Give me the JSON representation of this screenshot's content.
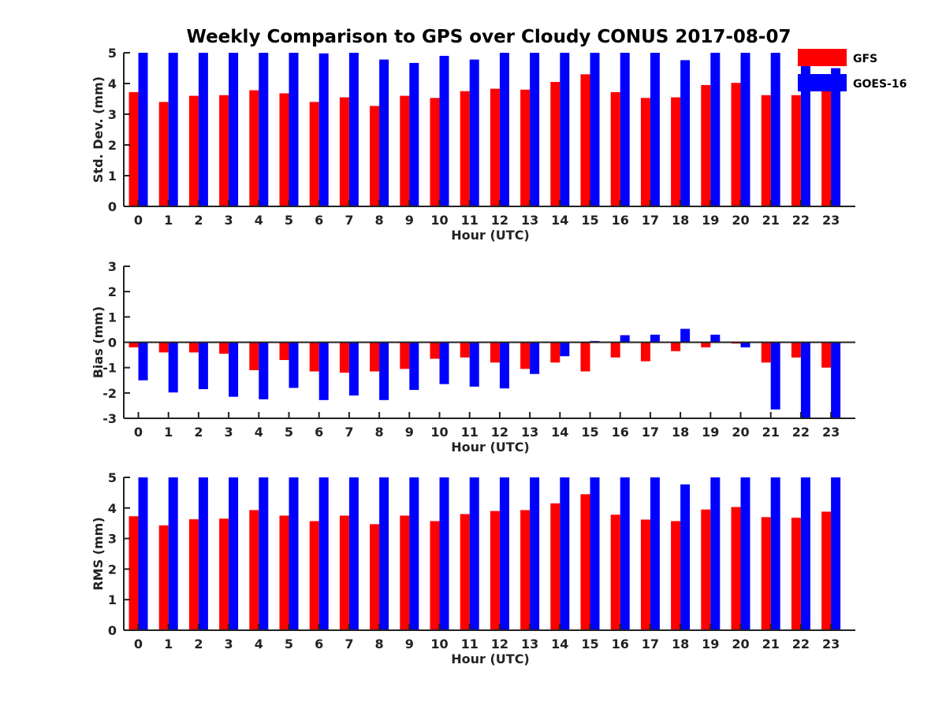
{
  "chart_data": {
    "title": "Weekly Comparison to GPS over Cloudy CONUS 2017-08-07",
    "type": "bar",
    "legend": {
      "placement": "top-right",
      "entries": [
        {
          "name": "GFS",
          "color": "#ff0000"
        },
        {
          "name": "GOES-16",
          "color": "#0000ff"
        }
      ]
    },
    "panels": [
      {
        "id": "stddev",
        "ylabel": "Std. Dev. (mm)",
        "xlabel": "Hour (UTC)",
        "ylim": [
          0,
          5
        ],
        "yticks": [
          "0",
          "1",
          "2",
          "3",
          "4",
          "5"
        ],
        "categories": [
          "0",
          "1",
          "2",
          "3",
          "4",
          "5",
          "6",
          "7",
          "8",
          "9",
          "10",
          "11",
          "12",
          "13",
          "14",
          "15",
          "16",
          "17",
          "18",
          "19",
          "20",
          "21",
          "22",
          "23"
        ],
        "zero_line": false,
        "series": [
          {
            "name": "GFS",
            "color": "#ff0000",
            "values": [
              3.72,
              3.4,
              3.6,
              3.62,
              3.78,
              3.68,
              3.4,
              3.55,
              3.27,
              3.6,
              3.53,
              3.75,
              3.83,
              3.8,
              4.05,
              4.3,
              3.72,
              3.53,
              3.55,
              3.95,
              4.02,
              3.62,
              3.62,
              3.75
            ]
          },
          {
            "name": "GOES-16",
            "color": "#0000ff",
            "values": [
              5.0,
              5.0,
              5.0,
              5.0,
              5.0,
              5.0,
              4.98,
              5.0,
              4.78,
              4.67,
              4.9,
              4.78,
              5.0,
              5.0,
              5.0,
              5.0,
              5.0,
              5.0,
              4.76,
              5.0,
              5.0,
              5.0,
              5.0,
              4.5
            ]
          }
        ]
      },
      {
        "id": "bias",
        "ylabel": "Bias (mm)",
        "xlabel": "Hour (UTC)",
        "ylim": [
          -3,
          3
        ],
        "yticks": [
          "-3",
          "-2",
          "-1",
          "0",
          "1",
          "2",
          "3"
        ],
        "categories": [
          "0",
          "1",
          "2",
          "3",
          "4",
          "5",
          "6",
          "7",
          "8",
          "9",
          "10",
          "11",
          "12",
          "13",
          "14",
          "15",
          "16",
          "17",
          "18",
          "19",
          "20",
          "21",
          "22",
          "23"
        ],
        "zero_line": true,
        "series": [
          {
            "name": "GFS",
            "color": "#ff0000",
            "values": [
              -0.2,
              -0.4,
              -0.4,
              -0.45,
              -1.1,
              -0.7,
              -1.15,
              -1.2,
              -1.15,
              -1.05,
              -0.65,
              -0.6,
              -0.8,
              -1.05,
              -0.8,
              -1.15,
              -0.6,
              -0.75,
              -0.35,
              -0.2,
              -0.05,
              -0.8,
              -0.6,
              -1.0
            ]
          },
          {
            "name": "GOES-16",
            "color": "#0000ff",
            "values": [
              -1.5,
              -1.98,
              -1.85,
              -2.15,
              -2.25,
              -1.8,
              -2.28,
              -2.1,
              -2.28,
              -1.88,
              -1.65,
              -1.75,
              -1.82,
              -1.25,
              -0.55,
              0.05,
              0.28,
              0.3,
              0.53,
              0.3,
              -0.2,
              -2.65,
              -3.0,
              -3.0
            ]
          }
        ]
      },
      {
        "id": "rms",
        "ylabel": "RMS (mm)",
        "xlabel": "Hour (UTC)",
        "ylim": [
          0,
          5
        ],
        "yticks": [
          "0",
          "1",
          "2",
          "3",
          "4",
          "5"
        ],
        "categories": [
          "0",
          "1",
          "2",
          "3",
          "4",
          "5",
          "6",
          "7",
          "8",
          "9",
          "10",
          "11",
          "12",
          "13",
          "14",
          "15",
          "16",
          "17",
          "18",
          "19",
          "20",
          "21",
          "22",
          "23"
        ],
        "zero_line": false,
        "series": [
          {
            "name": "GFS",
            "color": "#ff0000",
            "values": [
              3.73,
              3.43,
              3.63,
              3.65,
              3.93,
              3.75,
              3.57,
              3.75,
              3.47,
              3.75,
              3.57,
              3.8,
              3.9,
              3.93,
              4.15,
              4.45,
              3.78,
              3.62,
              3.57,
              3.95,
              4.03,
              3.7,
              3.68,
              3.88
            ]
          },
          {
            "name": "GOES-16",
            "color": "#0000ff",
            "values": [
              5.0,
              5.0,
              5.0,
              5.0,
              5.0,
              5.0,
              5.0,
              5.0,
              5.0,
              5.0,
              5.0,
              5.0,
              5.0,
              5.0,
              5.0,
              5.0,
              5.0,
              5.0,
              4.77,
              5.0,
              5.0,
              5.0,
              5.0,
              5.0
            ]
          }
        ]
      }
    ]
  }
}
